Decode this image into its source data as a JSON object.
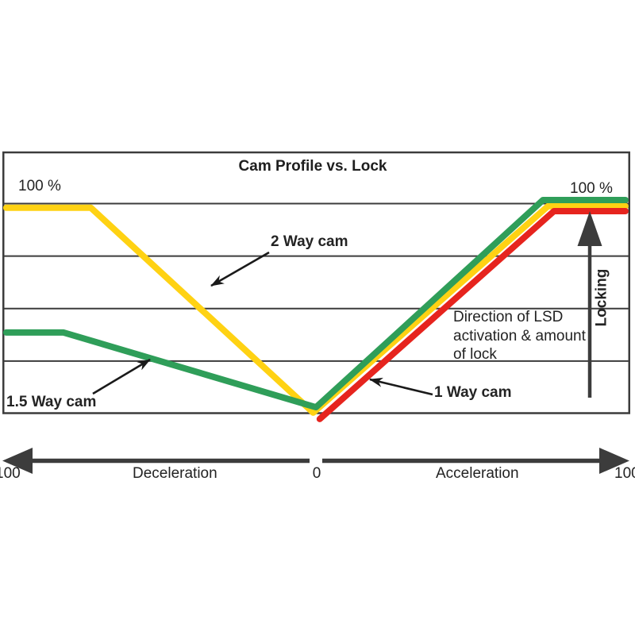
{
  "figure": {
    "top_left_value": "100 %",
    "top_right_value": "100 %",
    "direction_note": "Direction of LSD\nactivation & amount\nof lock",
    "locking_label": "Locking"
  },
  "x_axis": {
    "left_end_label": "100",
    "deceleration_label": "Deceleration",
    "zero_label": "0",
    "acceleration_label": "Acceleration",
    "right_end_label": "100"
  },
  "colors": {
    "two_way": "#FFD213",
    "one_five_way": "#2F9E59",
    "one_way": "#E6241E",
    "grid": "#3C3C3C",
    "axis_arrow": "#3C3C3C",
    "leader_arrow": "#1A1A1A"
  },
  "chart_data": {
    "type": "line",
    "title": "Cam Profile vs. Lock",
    "xlabel": "Deceleration (-100) to Acceleration (+100)",
    "ylabel": "Locking (% of lock)",
    "xlim": [
      -100,
      100
    ],
    "ylim": [
      0,
      100
    ],
    "grid": "horizontal",
    "gridline_pcts": [
      25,
      50,
      75,
      100
    ],
    "legend_position": "inline-labels-with-arrows",
    "series": [
      {
        "name": "2 Way cam",
        "color": "#FFD213",
        "points": [
          [
            -99,
            98
          ],
          [
            -72,
            98
          ],
          [
            -1,
            0.4
          ],
          [
            74,
            98.8
          ],
          [
            98.7,
            98.8
          ]
        ],
        "description": "100% lock at full deceleration and full acceleration, 0 at zero torque"
      },
      {
        "name": "1.5 Way cam",
        "color": "#2F9E59",
        "points": [
          [
            -99,
            38.6
          ],
          [
            -80.7,
            38.6
          ],
          [
            -0.1,
            3
          ],
          [
            72.4,
            101.7
          ],
          [
            98.7,
            101.7
          ]
        ],
        "description": "Partial (~40%) lock on deceleration, full lock on acceleration"
      },
      {
        "name": "1 Way cam",
        "color": "#E6241E",
        "points": [
          [
            1.1,
            -2.6
          ],
          [
            75.9,
            96.4
          ],
          [
            98.7,
            96.4
          ]
        ],
        "description": "No lock on deceleration, full lock on acceleration"
      }
    ]
  }
}
